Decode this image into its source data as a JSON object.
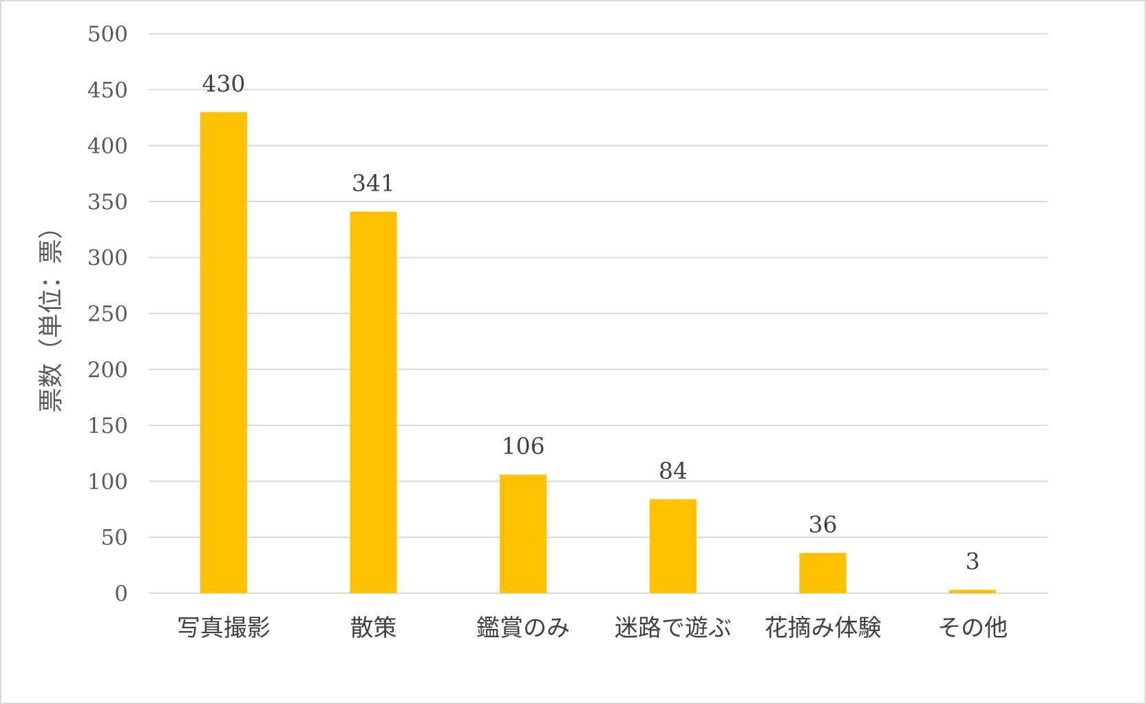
{
  "chart_data": {
    "type": "bar",
    "title": "",
    "xlabel": "",
    "ylabel": "票数（単位：票）",
    "categories": [
      "写真撮影",
      "散策",
      "鑑賞のみ",
      "迷路で遊ぶ",
      "花摘み体験",
      "その他"
    ],
    "values": [
      430,
      341,
      106,
      84,
      36,
      3
    ],
    "data_labels": [
      "430",
      "341",
      "106",
      "84",
      "36",
      "3"
    ],
    "ylim": [
      0,
      500
    ],
    "yticks": [
      0,
      50,
      100,
      150,
      200,
      250,
      300,
      350,
      400,
      450,
      500
    ],
    "ytick_labels": [
      "0",
      "50",
      "100",
      "150",
      "200",
      "250",
      "300",
      "350",
      "400",
      "450",
      "500"
    ],
    "grid": true,
    "legend": "none",
    "colors": {
      "bar": "#FFC000",
      "grid": "#d9d9d9",
      "border": "#d9d9d9"
    }
  }
}
